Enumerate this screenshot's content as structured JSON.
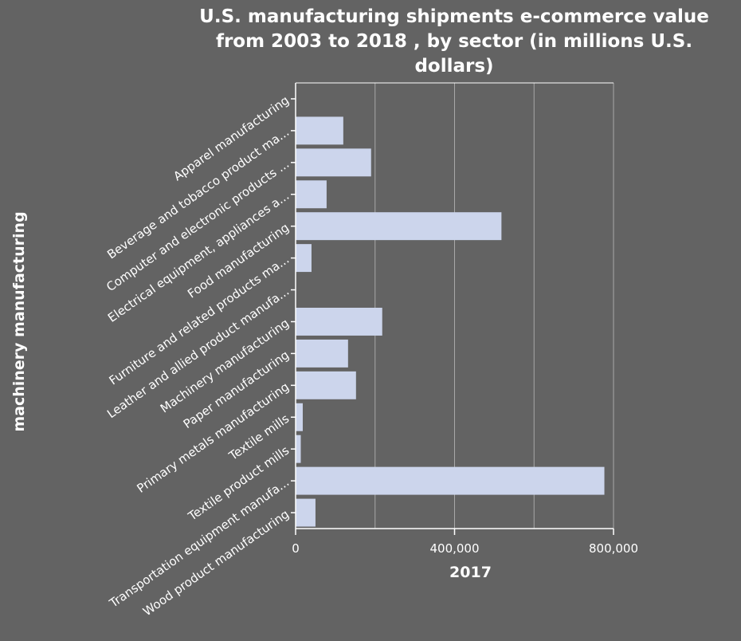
{
  "chart_data": {
    "type": "bar",
    "orientation": "horizontal",
    "title": "U.S. manufacturing shipments e-commerce value from 2003 to 2018 , by sector (in millions U.S. dollars)",
    "xlabel": "2017",
    "ylabel": "machinery manufacturing",
    "xlim": [
      0,
      800000
    ],
    "xticks": [
      0,
      400000,
      800000
    ],
    "xtick_labels": [
      "0",
      "400,000",
      "800,000"
    ],
    "grid": true,
    "bar_color": "#ccd5ec",
    "categories": [
      "Apparel manufacturing",
      "Beverage and tobacco product ma...",
      "Computer and electronic products ...",
      "Electrical equipment, appliances a...",
      "Food manufacturing",
      "Furniture and related products ma...",
      "Leather and allied product manufa...",
      "Machinery manufacturing",
      "Paper manufacturing",
      "Primary metals manufacturing",
      "Textile mills",
      "Textile product mills",
      "Transportation equipment manufa...",
      "Wood product manufacturing"
    ],
    "values": [
      0,
      120000,
      190000,
      78000,
      518000,
      40000,
      0,
      218000,
      132000,
      152000,
      18000,
      13000,
      777000,
      50000
    ]
  }
}
